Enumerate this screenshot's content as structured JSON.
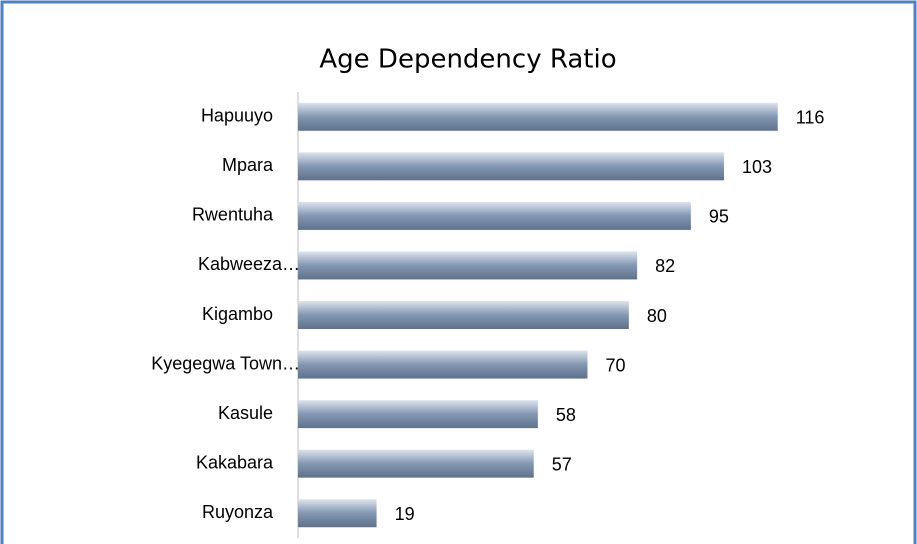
{
  "chart_data": {
    "type": "bar",
    "orientation": "horizontal",
    "title": "Age Dependency Ratio",
    "categories": [
      "Hapuuyo",
      "Mpara",
      "Rwentuha",
      "Kabweeza…",
      "Kigambo",
      "Kyegegwa Town…",
      "Kasule",
      "Kakabara",
      "Ruyonza"
    ],
    "values": [
      116,
      103,
      95,
      82,
      80,
      70,
      58,
      57,
      19
    ],
    "color": "#8397b2",
    "xlim": [
      0,
      140
    ]
  }
}
